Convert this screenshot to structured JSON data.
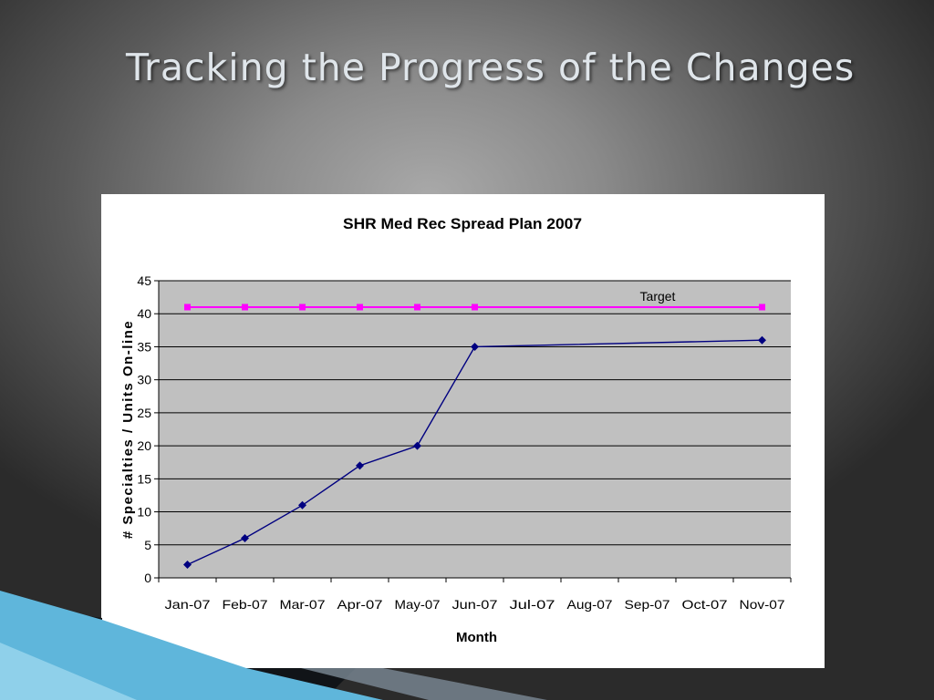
{
  "slide": {
    "title": "Tracking the Progress of the Changes"
  },
  "colors": {
    "plot_background": "#c0c0c0",
    "actual_series": "#000080",
    "target_series": "#ff00ff",
    "gridline": "#000000"
  },
  "chart_data": {
    "type": "line",
    "title": "SHR Med Rec Spread Plan 2007",
    "xlabel": "Month",
    "ylabel": "# Specialties / Units On-line",
    "categories": [
      "Jan-07",
      "Feb-07",
      "Mar-07",
      "Apr-07",
      "May-07",
      "Jun-07",
      "Jul-07",
      "Aug-07",
      "Sep-07",
      "Oct-07",
      "Nov-07"
    ],
    "ylim": [
      0,
      45
    ],
    "yticks": [
      "0",
      "5",
      "10",
      "15",
      "20",
      "25",
      "30",
      "35",
      "40",
      "45"
    ],
    "grid": true,
    "series": [
      {
        "values": [
          2,
          6,
          11,
          17,
          20,
          35,
          null,
          null,
          null,
          null,
          36
        ],
        "marker": "diamond"
      },
      {
        "name": "Target",
        "values": [
          41,
          41,
          41,
          41,
          41,
          41,
          null,
          null,
          null,
          null,
          41
        ],
        "marker": "square"
      }
    ],
    "annotations": [
      "Target"
    ]
  }
}
